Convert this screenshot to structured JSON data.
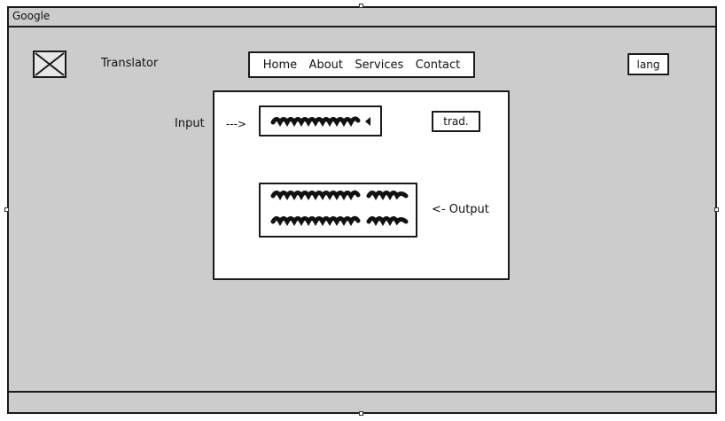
{
  "window": {
    "title": "Google"
  },
  "header": {
    "logo_icon": "image-placeholder-icon",
    "app_name": "Translator",
    "nav": [
      "Home",
      "About",
      "Services",
      "Contact"
    ],
    "lang_button": "lang"
  },
  "main": {
    "input_label": "Input",
    "input_arrow": "--->",
    "translate_button": "trad.",
    "output_label": "<- Output"
  },
  "colors": {
    "background": "#cccccc",
    "stroke": "#1a1a1a",
    "panel": "#ffffff"
  }
}
